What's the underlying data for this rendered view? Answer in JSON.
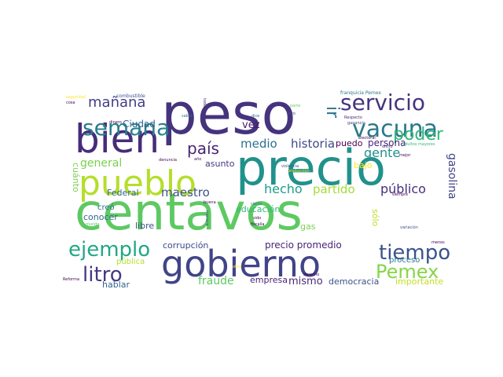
{
  "words": [
    {
      "text": "centavos",
      "color": "#5ec962"
    },
    {
      "text": "peso",
      "color": "#46337e"
    },
    {
      "text": "precio",
      "color": "#21918c"
    },
    {
      "text": "gobierno",
      "color": "#414487"
    },
    {
      "text": "pueblo",
      "color": "#b5de2b"
    },
    {
      "text": "bien",
      "color": "#472c7a"
    },
    {
      "text": "servicio",
      "color": "#46337e"
    },
    {
      "text": "vacuna",
      "color": "#2a788e"
    },
    {
      "text": "semana",
      "color": "#277f8e"
    },
    {
      "text": "poder",
      "color": "#35b779"
    },
    {
      "text": "tiempo",
      "color": "#3b528b"
    },
    {
      "text": "ejemplo",
      "color": "#22a884"
    },
    {
      "text": "litro",
      "color": "#443983"
    },
    {
      "text": "Pemex",
      "color": "#86d549"
    },
    {
      "text": "mañana",
      "color": "#433e85"
    },
    {
      "text": "país",
      "color": "#482475"
    },
    {
      "text": "ir",
      "color": "#2c728e"
    },
    {
      "text": "gente",
      "color": "#21918c"
    },
    {
      "text": "medio",
      "color": "#2d708e"
    },
    {
      "text": "historia",
      "color": "#3e4989"
    },
    {
      "text": "general",
      "color": "#7ad151"
    },
    {
      "text": "hecho",
      "color": "#1f9e89"
    },
    {
      "text": "partido",
      "color": "#a5db36"
    },
    {
      "text": "público",
      "color": "#472d7b"
    },
    {
      "text": "gasolina",
      "color": "#414487"
    },
    {
      "text": "maestro",
      "color": "#3b528b"
    },
    {
      "text": "vez",
      "color": "#481a6c"
    },
    {
      "text": "Ciudad",
      "color": "#31688e"
    },
    {
      "text": "puedo",
      "color": "#440154"
    },
    {
      "text": "persona",
      "color": "#482677"
    },
    {
      "text": "fraude",
      "color": "#5ec962"
    },
    {
      "text": "mismo",
      "color": "#482878"
    },
    {
      "text": "democracia",
      "color": "#3b528b"
    },
    {
      "text": "precio promedio",
      "color": "#482475"
    },
    {
      "text": "corrupción",
      "color": "#3e4a89"
    },
    {
      "text": "empresa",
      "color": "#482475"
    },
    {
      "text": "proceso",
      "color": "#2a788e"
    },
    {
      "text": "importante",
      "color": "#c2df23"
    },
    {
      "text": "hablar",
      "color": "#33638d"
    },
    {
      "text": "pública",
      "color": "#b5de2b"
    },
    {
      "text": "libre",
      "color": "#3b528b"
    },
    {
      "text": "conocer",
      "color": "#31688e"
    },
    {
      "text": "creó",
      "color": "#2c728e"
    },
    {
      "text": "Federal",
      "color": "#32648e"
    },
    {
      "text": "educación",
      "color": "#35b779"
    },
    {
      "text": "gas",
      "color": "#7ad151"
    },
    {
      "text": "sólo",
      "color": "#bddf26"
    },
    {
      "text": "bajo",
      "color": "#fde725"
    },
    {
      "text": "asunto",
      "color": "#453781"
    },
    {
      "text": "cuánto",
      "color": "#7ad151"
    },
    {
      "text": "combustible",
      "color": "#3b528b"
    },
    {
      "text": "seguridad",
      "color": "#fde725"
    },
    {
      "text": "cosa",
      "color": "#440154"
    },
    {
      "text": "dinero",
      "color": "#440154"
    },
    {
      "text": "saber",
      "color": "#2a788e"
    },
    {
      "text": "todo",
      "color": "#482475"
    },
    {
      "text": "parte",
      "color": "#6ece58"
    },
    {
      "text": "libro",
      "color": "#3e4989"
    },
    {
      "text": "franquicia Pemex",
      "color": "#2a788e"
    },
    {
      "text": "Respecto",
      "color": "#472d7b"
    },
    {
      "text": "ganancia",
      "color": "#3e4989"
    },
    {
      "text": "electoral",
      "color": "#440154"
    },
    {
      "text": "adultos mayores",
      "color": "#35b779"
    },
    {
      "text": "dicho",
      "color": "#482878"
    },
    {
      "text": "mejor",
      "color": "#440154"
    },
    {
      "text": "violencia",
      "color": "#3b528b"
    },
    {
      "text": "denuncia",
      "color": "#440154"
    },
    {
      "text": "año",
      "color": "#440154"
    },
    {
      "text": "buena",
      "color": "#440154"
    },
    {
      "text": "manera",
      "color": "#3b528b"
    },
    {
      "text": "fiscalía",
      "color": "#440154"
    },
    {
      "text": "siempre",
      "color": "#440154"
    },
    {
      "text": "variación",
      "color": "#3b528b"
    },
    {
      "text": "menos",
      "color": "#440154"
    },
    {
      "text": "derecho",
      "color": "#440154"
    },
    {
      "text": "Reforma",
      "color": "#440154"
    },
    {
      "text": "mundo",
      "color": "#5ec962"
    },
    {
      "text": "sido",
      "color": "#440154"
    },
    {
      "text": "cierto",
      "color": "#2a788e"
    },
    {
      "text": "dice",
      "color": "#2a788e"
    },
    {
      "text": "obra",
      "color": "#fde725"
    },
    {
      "text": "producción",
      "color": "#fde725"
    }
  ]
}
